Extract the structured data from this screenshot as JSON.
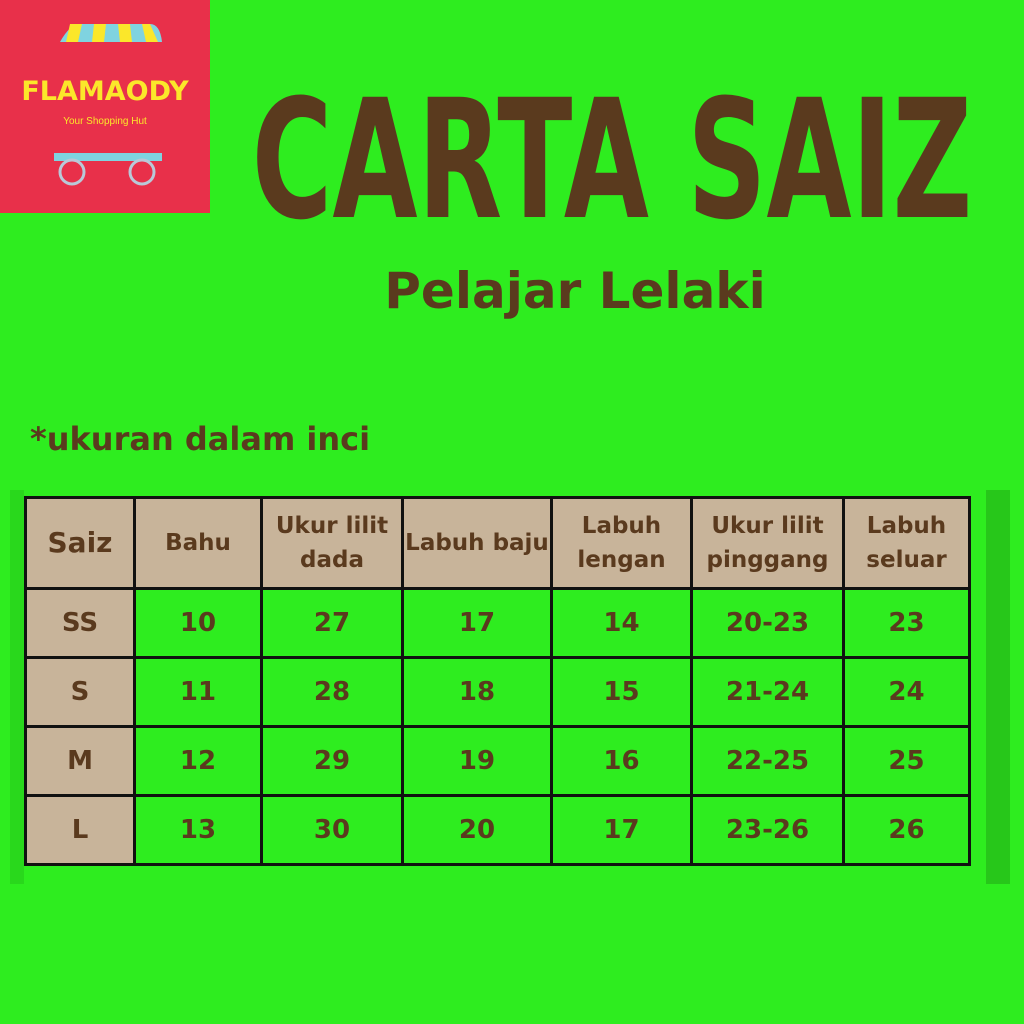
{
  "logo": {
    "name": "FLAMAODY",
    "tagline": "Your Shopping Hut",
    "colors": {
      "background": "#e8304a",
      "text": "#fbe72a",
      "cart": "#7fd3e0"
    }
  },
  "title": "CARTA SAIZ",
  "subtitle": "Pelajar Lelaki",
  "note": "*ukuran dalam inci",
  "colors": {
    "background": "#2eed1f",
    "header": "#c8b49a",
    "text": "#5a3a1e"
  },
  "table": {
    "headers": [
      "Saiz",
      "Bahu",
      "Ukur lilit dada",
      "Labuh baju",
      "Labuh lengan",
      "Ukur lilit pinggang",
      "Labuh seluar"
    ],
    "rows": [
      [
        "SS",
        "10",
        "27",
        "17",
        "14",
        "20-23",
        "23"
      ],
      [
        "S",
        "11",
        "28",
        "18",
        "15",
        "21-24",
        "24"
      ],
      [
        "M",
        "12",
        "29",
        "19",
        "16",
        "22-25",
        "25"
      ],
      [
        "L",
        "13",
        "30",
        "20",
        "17",
        "23-26",
        "26"
      ]
    ]
  }
}
